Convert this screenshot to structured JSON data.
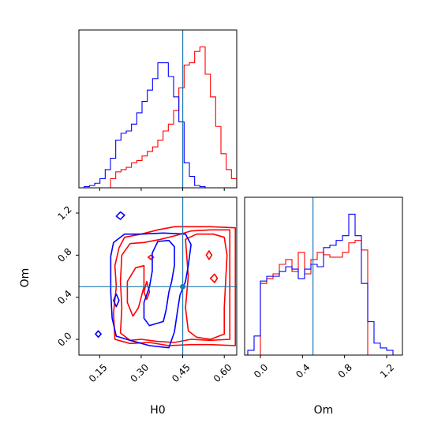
{
  "chart_data": {
    "type": "corner",
    "parameters": [
      "H0",
      "Om"
    ],
    "truths": {
      "H0": 0.45,
      "Om": 0.5
    },
    "colors": {
      "a": "#ff0000",
      "b": "#0000ff",
      "truth": "#1f77b4"
    },
    "axes": {
      "H0": {
        "label": "H0",
        "lim": [
          0.075,
          0.645
        ],
        "ticks": [
          0.15,
          0.3,
          0.45,
          0.6
        ],
        "tick_labels": [
          "0.15",
          "0.30",
          "0.45",
          "0.60"
        ]
      },
      "Om": {
        "label": "Om",
        "lim": [
          -0.15,
          1.35
        ],
        "ticks": [
          0.0,
          0.4,
          0.8,
          1.2
        ],
        "tick_labels": [
          "0.0",
          "0.4",
          "0.8",
          "1.2"
        ]
      }
    },
    "hist_H0": {
      "bin_width": 0.019,
      "series": [
        {
          "color": "red",
          "bin_lefts": [
            0.189,
            0.208,
            0.227,
            0.246,
            0.265,
            0.284,
            0.303,
            0.322,
            0.341,
            0.36,
            0.379,
            0.398,
            0.417,
            0.436,
            0.455,
            0.474,
            0.493,
            0.512,
            0.531,
            0.55,
            0.569,
            0.588,
            0.607,
            0.626
          ],
          "values": [
            4,
            7,
            8,
            9,
            11,
            12,
            14,
            16,
            18,
            21,
            25,
            28,
            34,
            44,
            54,
            55,
            60,
            62,
            50,
            40,
            27,
            15,
            8,
            4
          ]
        },
        {
          "color": "blue",
          "bin_lefts": [
            0.075,
            0.094,
            0.113,
            0.132,
            0.151,
            0.17,
            0.189,
            0.208,
            0.227,
            0.246,
            0.265,
            0.284,
            0.303,
            0.322,
            0.341,
            0.36,
            0.379,
            0.398,
            0.417,
            0.436,
            0.455,
            0.474,
            0.493,
            0.512
          ],
          "values": [
            0,
            0.5,
            1,
            2,
            4,
            8,
            13,
            21,
            24,
            25,
            28,
            33,
            38,
            43,
            48,
            55,
            55,
            49,
            40,
            29,
            11,
            5,
            1,
            0.5
          ]
        }
      ]
    },
    "hist_Om": {
      "bin_width": 0.06,
      "series": [
        {
          "color": "red",
          "bin_lefts": [
            0.0,
            0.06,
            0.12,
            0.18,
            0.24,
            0.3,
            0.36,
            0.42,
            0.48,
            0.54,
            0.6,
            0.66,
            0.72,
            0.78,
            0.84,
            0.9,
            0.96
          ],
          "values": [
            30,
            32,
            34,
            38,
            40,
            35,
            43,
            34,
            40,
            43,
            42,
            41,
            41,
            43,
            47,
            48,
            44
          ]
        },
        {
          "color": "blue",
          "bin_lefts": [
            -0.12,
            -0.06,
            0.0,
            0.06,
            0.12,
            0.18,
            0.24,
            0.3,
            0.36,
            0.42,
            0.48,
            0.54,
            0.6,
            0.66,
            0.72,
            0.78,
            0.84,
            0.9,
            0.96,
            1.02,
            1.08,
            1.14,
            1.2
          ],
          "values": [
            2,
            8,
            31,
            33,
            33,
            35,
            37,
            36,
            32,
            36,
            38,
            37,
            45,
            46,
            48,
            50,
            59,
            50,
            30,
            14,
            5,
            3,
            2
          ]
        }
      ]
    },
    "contours_2d": [
      {
        "color": "red",
        "levels": [
          [
            [
              0.22,
              0.87
            ],
            [
              0.24,
              0.97
            ],
            [
              0.3,
              1.0
            ],
            [
              0.36,
              1.04
            ],
            [
              0.42,
              1.07
            ],
            [
              0.48,
              1.07
            ],
            [
              0.55,
              1.07
            ],
            [
              0.64,
              1.06
            ],
            [
              0.64,
              -0.06
            ],
            [
              0.55,
              -0.05
            ],
            [
              0.48,
              -0.05
            ],
            [
              0.4,
              -0.06
            ],
            [
              0.33,
              -0.03
            ],
            [
              0.26,
              -0.04
            ],
            [
              0.205,
              0.0
            ],
            [
              0.2,
              0.25
            ],
            [
              0.21,
              0.5
            ],
            [
              0.205,
              0.7
            ],
            [
              0.22,
              0.87
            ]
          ],
          [
            [
              0.23,
              0.8
            ],
            [
              0.26,
              0.91
            ],
            [
              0.31,
              0.92
            ],
            [
              0.37,
              0.95
            ],
            [
              0.43,
              0.99
            ],
            [
              0.48,
              1.03
            ],
            [
              0.55,
              1.04
            ],
            [
              0.62,
              1.04
            ],
            [
              0.62,
              0.0
            ],
            [
              0.55,
              -0.01
            ],
            [
              0.48,
              0.0
            ],
            [
              0.42,
              -0.03
            ],
            [
              0.36,
              -0.02
            ],
            [
              0.3,
              0.0
            ],
            [
              0.26,
              -0.01
            ],
            [
              0.225,
              0.06
            ],
            [
              0.23,
              0.3
            ],
            [
              0.225,
              0.55
            ],
            [
              0.23,
              0.8
            ]
          ],
          [
            [
              0.46,
              0.95
            ],
            [
              0.5,
              1.0
            ],
            [
              0.56,
              1.0
            ],
            [
              0.6,
              0.97
            ],
            [
              0.61,
              0.8
            ],
            [
              0.6,
              0.3
            ],
            [
              0.6,
              0.05
            ],
            [
              0.55,
              0.0
            ],
            [
              0.5,
              0.02
            ],
            [
              0.47,
              0.08
            ],
            [
              0.46,
              0.3
            ],
            [
              0.47,
              0.6
            ],
            [
              0.46,
              0.95
            ]
          ],
          [
            [
              0.25,
              0.55
            ],
            [
              0.28,
              0.68
            ],
            [
              0.31,
              0.7
            ],
            [
              0.31,
              0.5
            ],
            [
              0.29,
              0.3
            ],
            [
              0.27,
              0.22
            ],
            [
              0.25,
              0.35
            ],
            [
              0.25,
              0.55
            ]
          ],
          [
            [
              0.31,
              0.45
            ],
            [
              0.32,
              0.55
            ],
            [
              0.33,
              0.45
            ],
            [
              0.32,
              0.38
            ],
            [
              0.31,
              0.45
            ]
          ],
          [
            [
              0.535,
              0.8
            ],
            [
              0.545,
              0.84
            ],
            [
              0.555,
              0.8
            ],
            [
              0.545,
              0.76
            ],
            [
              0.535,
              0.8
            ]
          ],
          [
            [
              0.55,
              0.58
            ],
            [
              0.565,
              0.62
            ],
            [
              0.575,
              0.58
            ],
            [
              0.565,
              0.54
            ],
            [
              0.55,
              0.58
            ]
          ],
          [
            [
              0.325,
              0.78
            ],
            [
              0.335,
              0.8
            ],
            [
              0.345,
              0.78
            ],
            [
              0.335,
              0.76
            ],
            [
              0.325,
              0.78
            ]
          ]
        ]
      },
      {
        "color": "blue",
        "levels": [
          [
            [
              0.19,
              0.79
            ],
            [
              0.2,
              0.92
            ],
            [
              0.24,
              1.0
            ],
            [
              0.3,
              1.0
            ],
            [
              0.38,
              1.01
            ],
            [
              0.46,
              1.0
            ],
            [
              0.48,
              0.9
            ],
            [
              0.47,
              0.7
            ],
            [
              0.46,
              0.55
            ],
            [
              0.44,
              0.42
            ],
            [
              0.43,
              0.25
            ],
            [
              0.42,
              0.07
            ],
            [
              0.4,
              -0.08
            ],
            [
              0.33,
              -0.06
            ],
            [
              0.26,
              -0.01
            ],
            [
              0.21,
              0.03
            ],
            [
              0.195,
              0.2
            ],
            [
              0.19,
              0.45
            ],
            [
              0.19,
              0.79
            ]
          ],
          [
            [
              0.34,
              0.82
            ],
            [
              0.36,
              0.93
            ],
            [
              0.4,
              0.94
            ],
            [
              0.42,
              0.88
            ],
            [
              0.42,
              0.7
            ],
            [
              0.41,
              0.55
            ],
            [
              0.4,
              0.45
            ],
            [
              0.39,
              0.28
            ],
            [
              0.38,
              0.17
            ],
            [
              0.33,
              0.13
            ],
            [
              0.31,
              0.2
            ],
            [
              0.31,
              0.35
            ],
            [
              0.33,
              0.5
            ],
            [
              0.34,
              0.65
            ],
            [
              0.34,
              0.82
            ]
          ],
          [
            [
              0.21,
              1.17
            ],
            [
              0.225,
              1.21
            ],
            [
              0.24,
              1.18
            ],
            [
              0.225,
              1.14
            ],
            [
              0.21,
              1.17
            ]
          ],
          [
            [
              0.135,
              0.05
            ],
            [
              0.145,
              0.08
            ],
            [
              0.155,
              0.05
            ],
            [
              0.145,
              0.02
            ],
            [
              0.135,
              0.05
            ]
          ],
          [
            [
              0.2,
              0.37
            ],
            [
              0.21,
              0.43
            ],
            [
              0.22,
              0.37
            ],
            [
              0.21,
              0.31
            ],
            [
              0.2,
              0.37
            ]
          ]
        ]
      }
    ]
  }
}
